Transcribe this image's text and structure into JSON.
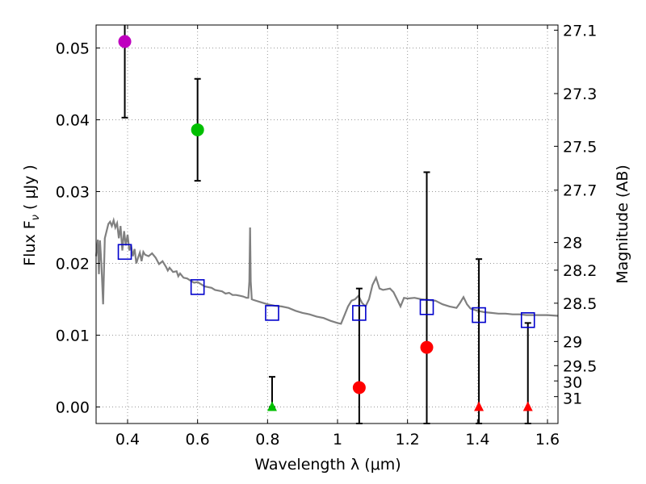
{
  "chart_data": {
    "type": "scatter",
    "xlabel": "Wavelength  λ (μm)",
    "ylabel": "Flux  F",
    "ylabel_sub": "ν",
    "ylabel_unit": "( μJy )",
    "ylabel_right": "Magnitude (AB)",
    "xlim": [
      0.31,
      1.63
    ],
    "ylim": [
      -0.0023,
      0.0532
    ],
    "grid": true,
    "x_ticks": [
      0.4,
      0.6,
      0.8,
      1.0,
      1.2,
      1.4,
      1.6
    ],
    "x_tick_labels": [
      "0.4",
      "0.6",
      "0.8",
      "1",
      "1.2",
      "1.4",
      "1.6"
    ],
    "y_ticks": [
      0.0,
      0.01,
      0.02,
      0.03,
      0.04,
      0.05
    ],
    "y_tick_labels": [
      "0.00",
      "0.01",
      "0.02",
      "0.03",
      "0.04",
      "0.05"
    ],
    "mag_ticks": [
      {
        "mag": 27.1,
        "label": "27.1"
      },
      {
        "mag": 27.3,
        "label": "27.3"
      },
      {
        "mag": 27.5,
        "label": "27.5"
      },
      {
        "mag": 27.7,
        "label": "27.7"
      },
      {
        "mag": 28.0,
        "label": "28"
      },
      {
        "mag": 28.2,
        "label": "28.2"
      },
      {
        "mag": 28.5,
        "label": "28.5"
      },
      {
        "mag": 29.0,
        "label": "29"
      },
      {
        "mag": 29.5,
        "label": "29.5"
      },
      {
        "mag": 30.0,
        "label": "30"
      },
      {
        "mag": 31.0,
        "label": "31"
      }
    ],
    "observed_points": [
      {
        "x": 0.392,
        "y": 0.0509,
        "err_lo": 0.0403,
        "err_hi": 0.0535,
        "color": "#bf00bf",
        "marker": "circle"
      },
      {
        "x": 0.6,
        "y": 0.0386,
        "err_lo": 0.0315,
        "err_hi": 0.0457,
        "color": "#00bf00",
        "marker": "circle"
      },
      {
        "x": 0.813,
        "y": 0.0,
        "err_lo": 0.0,
        "err_hi": 0.0042,
        "color": "#00bf00",
        "marker": "triangle"
      },
      {
        "x": 1.062,
        "y": 0.0027,
        "err_lo": -0.0023,
        "err_hi": 0.0165,
        "color": "#ff0000",
        "marker": "circle"
      },
      {
        "x": 1.255,
        "y": 0.0083,
        "err_lo": -0.0023,
        "err_hi": 0.0327,
        "color": "#ff0000",
        "marker": "circle"
      },
      {
        "x": 1.404,
        "y": 0.0,
        "err_lo": -0.0023,
        "err_hi": 0.0206,
        "color": "#ff0000",
        "marker": "triangle"
      },
      {
        "x": 1.544,
        "y": 0.0,
        "err_lo": -0.0023,
        "err_hi": 0.0117,
        "color": "#ff0000",
        "marker": "triangle"
      }
    ],
    "model_points": [
      {
        "x": 0.392,
        "y": 0.0216
      },
      {
        "x": 0.6,
        "y": 0.0167
      },
      {
        "x": 0.813,
        "y": 0.0131
      },
      {
        "x": 1.062,
        "y": 0.0131
      },
      {
        "x": 1.255,
        "y": 0.0139
      },
      {
        "x": 1.404,
        "y": 0.0128
      },
      {
        "x": 1.544,
        "y": 0.0121
      }
    ],
    "sed_curve": [
      [
        0.31,
        0.021
      ],
      [
        0.315,
        0.0233
      ],
      [
        0.318,
        0.0185
      ],
      [
        0.321,
        0.0232
      ],
      [
        0.325,
        0.0201
      ],
      [
        0.33,
        0.0143
      ],
      [
        0.335,
        0.0235
      ],
      [
        0.34,
        0.0245
      ],
      [
        0.345,
        0.0255
      ],
      [
        0.35,
        0.0258
      ],
      [
        0.355,
        0.0252
      ],
      [
        0.36,
        0.026
      ],
      [
        0.365,
        0.025
      ],
      [
        0.37,
        0.0256
      ],
      [
        0.375,
        0.0235
      ],
      [
        0.38,
        0.0252
      ],
      [
        0.385,
        0.0218
      ],
      [
        0.39,
        0.0245
      ],
      [
        0.395,
        0.0225
      ],
      [
        0.4,
        0.024
      ],
      [
        0.405,
        0.0218
      ],
      [
        0.41,
        0.0225
      ],
      [
        0.415,
        0.021
      ],
      [
        0.42,
        0.022
      ],
      [
        0.425,
        0.02
      ],
      [
        0.43,
        0.0208
      ],
      [
        0.435,
        0.0215
      ],
      [
        0.44,
        0.0203
      ],
      [
        0.445,
        0.0216
      ],
      [
        0.45,
        0.0212
      ],
      [
        0.46,
        0.021
      ],
      [
        0.47,
        0.0214
      ],
      [
        0.48,
        0.0208
      ],
      [
        0.49,
        0.0199
      ],
      [
        0.5,
        0.0203
      ],
      [
        0.51,
        0.0195
      ],
      [
        0.515,
        0.019
      ],
      [
        0.52,
        0.0194
      ],
      [
        0.53,
        0.0188
      ],
      [
        0.54,
        0.0189
      ],
      [
        0.545,
        0.0182
      ],
      [
        0.55,
        0.0186
      ],
      [
        0.56,
        0.018
      ],
      [
        0.57,
        0.0179
      ],
      [
        0.58,
        0.0176
      ],
      [
        0.59,
        0.0173
      ],
      [
        0.6,
        0.0174
      ],
      [
        0.61,
        0.0171
      ],
      [
        0.62,
        0.0168
      ],
      [
        0.63,
        0.0167
      ],
      [
        0.64,
        0.0166
      ],
      [
        0.65,
        0.0163
      ],
      [
        0.66,
        0.0162
      ],
      [
        0.67,
        0.0161
      ],
      [
        0.68,
        0.0158
      ],
      [
        0.69,
        0.0159
      ],
      [
        0.7,
        0.0156
      ],
      [
        0.71,
        0.0156
      ],
      [
        0.72,
        0.0155
      ],
      [
        0.73,
        0.0154
      ],
      [
        0.74,
        0.0152
      ],
      [
        0.745,
        0.0152
      ],
      [
        0.748,
        0.0175
      ],
      [
        0.75,
        0.025
      ],
      [
        0.752,
        0.0175
      ],
      [
        0.755,
        0.015
      ],
      [
        0.76,
        0.0149
      ],
      [
        0.78,
        0.0146
      ],
      [
        0.8,
        0.0143
      ],
      [
        0.82,
        0.0141
      ],
      [
        0.84,
        0.014
      ],
      [
        0.86,
        0.0138
      ],
      [
        0.88,
        0.0134
      ],
      [
        0.9,
        0.0131
      ],
      [
        0.92,
        0.0129
      ],
      [
        0.94,
        0.0126
      ],
      [
        0.96,
        0.0124
      ],
      [
        0.98,
        0.012
      ],
      [
        1.0,
        0.0117
      ],
      [
        1.01,
        0.0116
      ],
      [
        1.02,
        0.0128
      ],
      [
        1.03,
        0.014
      ],
      [
        1.04,
        0.0148
      ],
      [
        1.05,
        0.015
      ],
      [
        1.06,
        0.0155
      ],
      [
        1.07,
        0.0145
      ],
      [
        1.08,
        0.014
      ],
      [
        1.09,
        0.015
      ],
      [
        1.1,
        0.017
      ],
      [
        1.11,
        0.018
      ],
      [
        1.12,
        0.0165
      ],
      [
        1.13,
        0.0163
      ],
      [
        1.14,
        0.0164
      ],
      [
        1.15,
        0.0165
      ],
      [
        1.16,
        0.016
      ],
      [
        1.17,
        0.015
      ],
      [
        1.18,
        0.014
      ],
      [
        1.19,
        0.0152
      ],
      [
        1.2,
        0.0151
      ],
      [
        1.22,
        0.0152
      ],
      [
        1.24,
        0.015
      ],
      [
        1.26,
        0.0149
      ],
      [
        1.28,
        0.0148
      ],
      [
        1.3,
        0.0143
      ],
      [
        1.32,
        0.014
      ],
      [
        1.34,
        0.0138
      ],
      [
        1.35,
        0.0145
      ],
      [
        1.36,
        0.0153
      ],
      [
        1.37,
        0.0143
      ],
      [
        1.38,
        0.0137
      ],
      [
        1.4,
        0.0134
      ],
      [
        1.42,
        0.0132
      ],
      [
        1.44,
        0.0131
      ],
      [
        1.46,
        0.013
      ],
      [
        1.48,
        0.013
      ],
      [
        1.5,
        0.0129
      ],
      [
        1.52,
        0.0129
      ],
      [
        1.54,
        0.0128
      ],
      [
        1.56,
        0.0128
      ],
      [
        1.58,
        0.0128
      ],
      [
        1.6,
        0.0128
      ],
      [
        1.63,
        0.0127
      ]
    ],
    "colors": {
      "curve": "#808080",
      "model_marker": "#0000cc",
      "errorbar": "#000000",
      "grid": "#999999"
    }
  }
}
